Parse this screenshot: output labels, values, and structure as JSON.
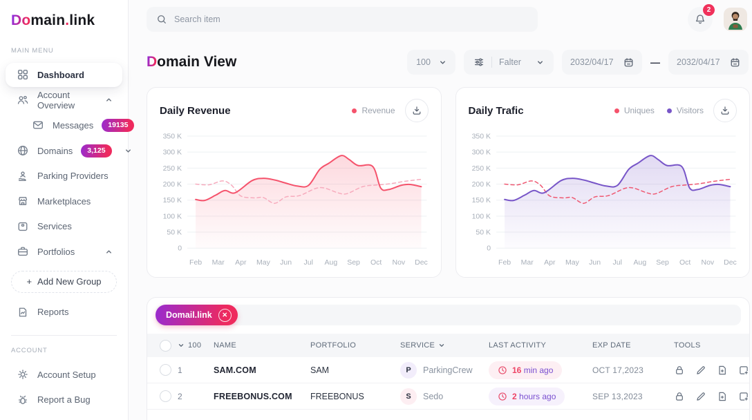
{
  "colors": {
    "accent_from": "#8a2be2",
    "accent_to": "#ee2a5e",
    "red": "#f5536c",
    "purple": "#7856c8"
  },
  "logo": {
    "accent": "Do",
    "main": "main",
    "dot": ".",
    "suffix": "link"
  },
  "sidebar": {
    "menu_label": "MAIN MENU",
    "account_label": "ACCOUNT",
    "items": [
      {
        "label": "Dashboard"
      },
      {
        "label": "Account Overview"
      },
      {
        "label": "Messages",
        "badge": "19135"
      },
      {
        "label": "Domains",
        "badge": "3,125"
      },
      {
        "label": "Parking Providers"
      },
      {
        "label": "Marketplaces"
      },
      {
        "label": "Services"
      },
      {
        "label": "Portfolios"
      },
      {
        "plus": "+",
        "label": "Add New Group"
      },
      {
        "label": "Reports"
      },
      {
        "label": "Account Setup"
      },
      {
        "label": "Report a Bug"
      }
    ]
  },
  "topbar": {
    "search_placeholder": "Search item",
    "notification_count": "2"
  },
  "page": {
    "title_accent": "D",
    "title_rest": "omain View",
    "page_size": "100",
    "filter_label": "Falter",
    "date_from": "2032/04/17",
    "date_separator": "—",
    "date_to": "2032/04/17"
  },
  "chart_data": [
    {
      "type": "area",
      "title": "Daily Revenue",
      "legend": [
        {
          "label": "Revenue",
          "color": "#f5536c"
        }
      ],
      "x_labels": [
        "Feb",
        "Mar",
        "Apr",
        "May",
        "Jun",
        "Jul",
        "Aug",
        "Sep",
        "Oct",
        "Nov",
        "Dec"
      ],
      "y_ticks": [
        "350 K",
        "300 K",
        "250 K",
        "200 K",
        "150 K",
        "100 K",
        "50 K",
        "0"
      ],
      "ylim_k": [
        0,
        350
      ],
      "grid": true,
      "legend_position": "top-right",
      "series": [
        {
          "name": "Revenue",
          "color": "#f5536c",
          "dash": false,
          "fill": true,
          "points": [
            [
              0,
              152
            ],
            [
              0.4,
              149
            ],
            [
              0.9,
              166
            ],
            [
              1.3,
              180
            ],
            [
              1.75,
              173
            ],
            [
              2.5,
              211
            ],
            [
              3,
              218
            ],
            [
              3.5,
              213
            ],
            [
              4,
              203
            ],
            [
              4.5,
              194
            ],
            [
              5,
              196
            ],
            [
              5.5,
              246
            ],
            [
              5.9,
              265
            ],
            [
              6.45,
              289
            ],
            [
              6.8,
              277
            ],
            [
              7.2,
              258
            ],
            [
              7.85,
              255
            ],
            [
              8.2,
              188
            ],
            [
              8.55,
              183
            ],
            [
              9.1,
              196
            ],
            [
              9.5,
              199
            ],
            [
              10,
              192
            ]
          ]
        },
        {
          "name": "Revenue previous period",
          "color": "#f7abbd",
          "dash": true,
          "fill": false,
          "points": [
            [
              0,
              200
            ],
            [
              0.6,
              198
            ],
            [
              1.2,
              210
            ],
            [
              1.6,
              196
            ],
            [
              2,
              163
            ],
            [
              2.6,
              157
            ],
            [
              3,
              158
            ],
            [
              3.5,
              140
            ],
            [
              4,
              160
            ],
            [
              4.6,
              164
            ],
            [
              5.3,
              186
            ],
            [
              5.7,
              188
            ],
            [
              6.3,
              173
            ],
            [
              6.7,
              170
            ],
            [
              7.4,
              192
            ],
            [
              8,
              197
            ],
            [
              8.6,
              201
            ],
            [
              9.3,
              209
            ],
            [
              10,
              215
            ]
          ]
        }
      ]
    },
    {
      "type": "area",
      "title": "Daily Trafic",
      "legend": [
        {
          "label": "Uniques",
          "color": "#f5536c"
        },
        {
          "label": "Visitors",
          "color": "#7856c8"
        }
      ],
      "x_labels": [
        "Feb",
        "Mar",
        "Apr",
        "May",
        "Jun",
        "Jul",
        "Aug",
        "Sep",
        "Oct",
        "Nov",
        "Dec"
      ],
      "y_ticks": [
        "350 K",
        "300 K",
        "250 K",
        "200 K",
        "150 K",
        "100 K",
        "50 K",
        "0"
      ],
      "ylim_k": [
        0,
        350
      ],
      "grid": true,
      "legend_position": "top-right",
      "series": [
        {
          "name": "Visitors",
          "color": "#7856c8",
          "dash": false,
          "fill": true,
          "points": [
            [
              0,
              152
            ],
            [
              0.4,
              149
            ],
            [
              0.9,
              166
            ],
            [
              1.3,
              180
            ],
            [
              1.75,
              173
            ],
            [
              2.5,
              211
            ],
            [
              3,
              218
            ],
            [
              3.5,
              213
            ],
            [
              4,
              203
            ],
            [
              4.5,
              194
            ],
            [
              5,
              196
            ],
            [
              5.5,
              246
            ],
            [
              5.9,
              265
            ],
            [
              6.45,
              289
            ],
            [
              6.8,
              277
            ],
            [
              7.2,
              258
            ],
            [
              7.85,
              255
            ],
            [
              8.2,
              188
            ],
            [
              8.55,
              183
            ],
            [
              9.1,
              196
            ],
            [
              9.5,
              199
            ],
            [
              10,
              192
            ]
          ]
        },
        {
          "name": "Uniques",
          "color": "#ef5871",
          "dash": true,
          "fill": false,
          "points": [
            [
              0,
              200
            ],
            [
              0.6,
              198
            ],
            [
              1.2,
              210
            ],
            [
              1.6,
              196
            ],
            [
              2,
              163
            ],
            [
              2.6,
              157
            ],
            [
              3,
              158
            ],
            [
              3.5,
              140
            ],
            [
              4,
              160
            ],
            [
              4.6,
              164
            ],
            [
              5.3,
              186
            ],
            [
              5.7,
              188
            ],
            [
              6.3,
              173
            ],
            [
              6.7,
              170
            ],
            [
              7.4,
              192
            ],
            [
              8,
              197
            ],
            [
              8.6,
              201
            ],
            [
              9.3,
              209
            ],
            [
              10,
              215
            ]
          ]
        }
      ]
    }
  ],
  "table": {
    "filter_chip": "Domail.link",
    "columns": {
      "count": "100",
      "name": "NAME",
      "portfolio": "PORTFOLIO",
      "service": "SERVICE",
      "last_activity": "LAST ACTIVITY",
      "exp_date": "EXP DATE",
      "tools": "TOOLS"
    },
    "rows": [
      {
        "num": "1",
        "name": "SAM.COM",
        "portfolio": "SAM",
        "service_initial": "P",
        "service": "ParkingCrew",
        "activity_value": "16",
        "activity_unit": "min ago",
        "exp_date": "OCT 17,2023"
      },
      {
        "num": "2",
        "name": "FREEBONUS.COM",
        "portfolio": "FREEBONUS",
        "service_initial": "S",
        "service": "Sedo",
        "activity_value": "2",
        "activity_unit": "hours ago",
        "exp_date": "SEP 13,2023"
      }
    ]
  }
}
